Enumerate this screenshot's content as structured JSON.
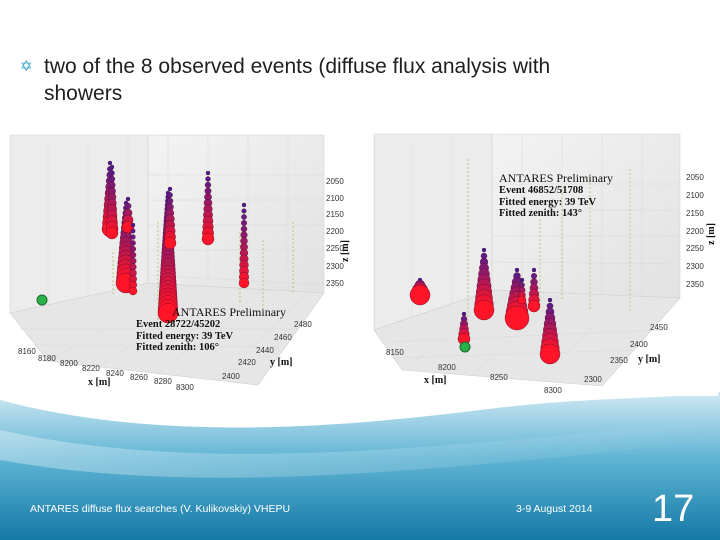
{
  "slide": {
    "bullet_glyph": "✡",
    "bullet_text": "two of the 8 observed events (diffuse flux analysis with",
    "bullet_text_cont": "showers",
    "footer_left": "ANTARES diffuse flux searches (V. Kulikovskiy) VHEPU",
    "footer_date": "3-9 August 2014",
    "slide_number": "17",
    "accent_color": "#2e9fc6"
  },
  "event_left": {
    "title": "ANTARES Preliminary",
    "event": "Event 28722/45202",
    "energy": "Fitted energy: 39 TeV",
    "zenith": "Fitted zenith: 106°",
    "z_ticks": [
      "2050",
      "2100",
      "2150",
      "2200",
      "2250",
      "2300",
      "2350"
    ],
    "z_label": "z [m]",
    "x_ticks": [
      "8160",
      "8180",
      "8200",
      "8220",
      "8240",
      "8260",
      "8280",
      "8300"
    ],
    "x_label": "x [m]",
    "y_ticks": [
      "2480",
      "2460",
      "2440",
      "2420",
      "2400"
    ],
    "y_label": "y [m]"
  },
  "event_right": {
    "title": "ANTARES Preliminary",
    "event": "Event 46852/51708",
    "energy": "Fitted energy: 39 TeV",
    "zenith": "Fitted zenith: 143°",
    "z_ticks": [
      "2050",
      "2100",
      "2150",
      "2200",
      "2250",
      "2300",
      "2350"
    ],
    "z_label": "z [m]",
    "x_ticks": [
      "8150",
      "8200",
      "8250",
      "8300"
    ],
    "x_label": "x [m]",
    "y_ticks": [
      "2450",
      "2400",
      "2350",
      "2300"
    ],
    "y_label": "y [m]"
  }
}
